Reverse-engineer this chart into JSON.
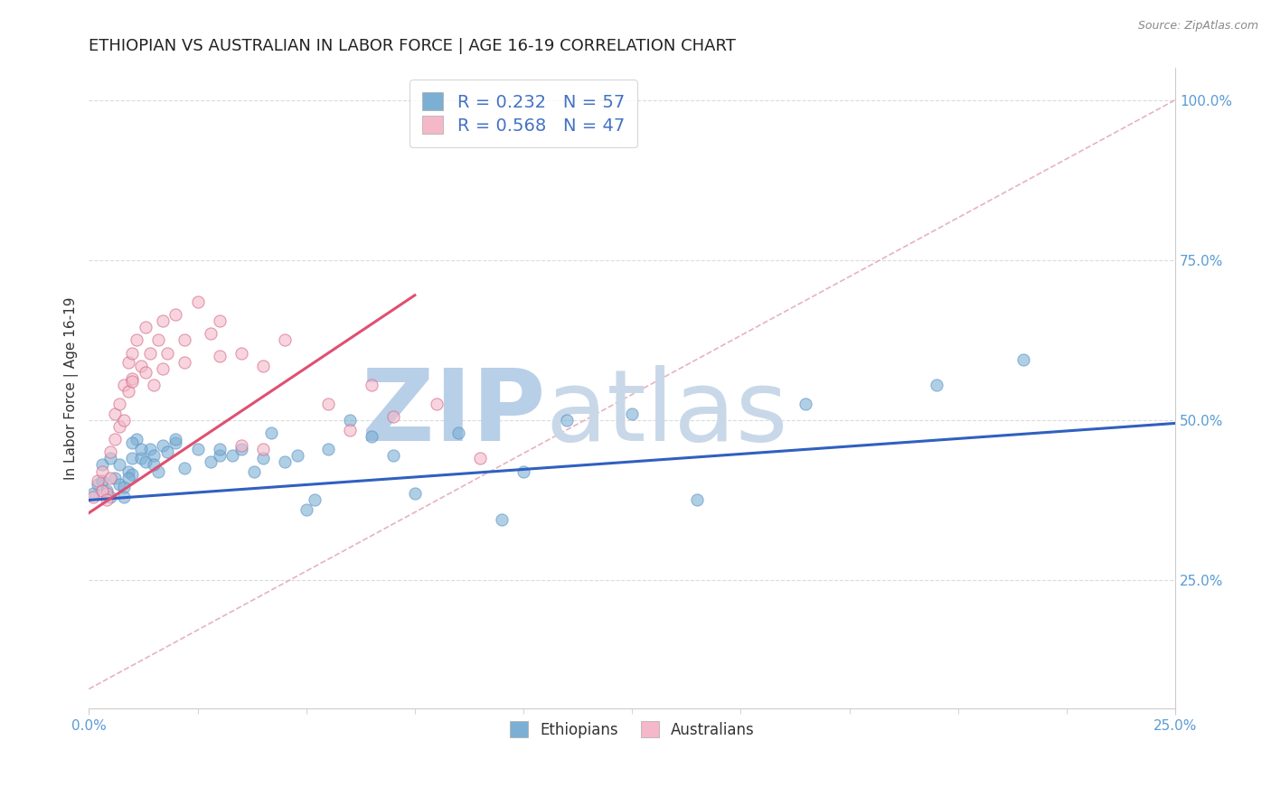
{
  "title": "ETHIOPIAN VS AUSTRALIAN IN LABOR FORCE | AGE 16-19 CORRELATION CHART",
  "source_text": "Source: ZipAtlas.com",
  "ylabel": "In Labor Force | Age 16-19",
  "xlim": [
    0.0,
    0.25
  ],
  "ylim": [
    0.05,
    1.05
  ],
  "yticks": [
    0.25,
    0.5,
    0.75,
    1.0
  ],
  "ytick_labels": [
    "25.0%",
    "50.0%",
    "75.0%",
    "100.0%"
  ],
  "xtick_vals": [
    0.0,
    0.25
  ],
  "xtick_labels": [
    "0.0%",
    "25.0%"
  ],
  "legend_r1": "R = 0.232   N = 57",
  "legend_r2": "R = 0.568   N = 47",
  "watermark_zip": "ZIP",
  "watermark_atlas": "atlas",
  "watermark_color_zip": "#b8cfe8",
  "watermark_color_atlas": "#c8d8e8",
  "blue_color": "#7bafd4",
  "blue_edge_color": "#5b8fc4",
  "pink_color": "#f4b8c8",
  "pink_edge_color": "#d06080",
  "pink_line_color": "#e05070",
  "blue_line_color": "#3060c0",
  "ref_line_color": "#e0a0b0",
  "grid_color": "#d8d8d8",
  "title_color": "#222222",
  "title_fontsize": 13,
  "tick_fontsize": 11,
  "axis_label_fontsize": 11,
  "blue_scatter_x": [
    0.001,
    0.002,
    0.003,
    0.003,
    0.004,
    0.005,
    0.005,
    0.006,
    0.007,
    0.007,
    0.008,
    0.009,
    0.01,
    0.01,
    0.011,
    0.012,
    0.013,
    0.014,
    0.015,
    0.016,
    0.017,
    0.018,
    0.02,
    0.022,
    0.025,
    0.028,
    0.03,
    0.033,
    0.035,
    0.038,
    0.042,
    0.045,
    0.048,
    0.052,
    0.055,
    0.06,
    0.065,
    0.07,
    0.075,
    0.085,
    0.095,
    0.1,
    0.11,
    0.125,
    0.14,
    0.165,
    0.195,
    0.215,
    0.008,
    0.009,
    0.01,
    0.012,
    0.015,
    0.02,
    0.03,
    0.04,
    0.05
  ],
  "blue_scatter_y": [
    0.385,
    0.4,
    0.405,
    0.43,
    0.39,
    0.38,
    0.44,
    0.41,
    0.4,
    0.43,
    0.395,
    0.42,
    0.415,
    0.44,
    0.47,
    0.44,
    0.435,
    0.455,
    0.445,
    0.42,
    0.46,
    0.45,
    0.465,
    0.425,
    0.455,
    0.435,
    0.445,
    0.445,
    0.455,
    0.42,
    0.48,
    0.435,
    0.445,
    0.375,
    0.455,
    0.5,
    0.475,
    0.445,
    0.385,
    0.48,
    0.345,
    0.42,
    0.5,
    0.51,
    0.375,
    0.525,
    0.555,
    0.595,
    0.38,
    0.41,
    0.465,
    0.455,
    0.43,
    0.47,
    0.455,
    0.44,
    0.36
  ],
  "pink_scatter_x": [
    0.001,
    0.002,
    0.003,
    0.004,
    0.005,
    0.005,
    0.006,
    0.007,
    0.007,
    0.008,
    0.009,
    0.009,
    0.01,
    0.01,
    0.011,
    0.012,
    0.013,
    0.014,
    0.015,
    0.016,
    0.017,
    0.018,
    0.02,
    0.022,
    0.025,
    0.028,
    0.03,
    0.035,
    0.04,
    0.045,
    0.055,
    0.06,
    0.065,
    0.07,
    0.08,
    0.09,
    0.003,
    0.004,
    0.006,
    0.008,
    0.01,
    0.013,
    0.017,
    0.022,
    0.03,
    0.035,
    0.04
  ],
  "pink_scatter_y": [
    0.38,
    0.405,
    0.42,
    0.385,
    0.45,
    0.41,
    0.51,
    0.525,
    0.49,
    0.555,
    0.59,
    0.545,
    0.605,
    0.565,
    0.625,
    0.585,
    0.645,
    0.605,
    0.555,
    0.625,
    0.655,
    0.605,
    0.665,
    0.625,
    0.685,
    0.635,
    0.655,
    0.605,
    0.585,
    0.625,
    0.525,
    0.485,
    0.555,
    0.505,
    0.525,
    0.44,
    0.39,
    0.375,
    0.47,
    0.5,
    0.56,
    0.575,
    0.58,
    0.59,
    0.6,
    0.46,
    0.455
  ],
  "blue_trend_x": [
    0.0,
    0.25
  ],
  "blue_trend_y": [
    0.375,
    0.495
  ],
  "pink_trend_x": [
    0.0,
    0.075
  ],
  "pink_trend_y": [
    0.355,
    0.695
  ],
  "ref_line_x": [
    0.0,
    0.25
  ],
  "ref_line_y": [
    0.08,
    1.0
  ]
}
